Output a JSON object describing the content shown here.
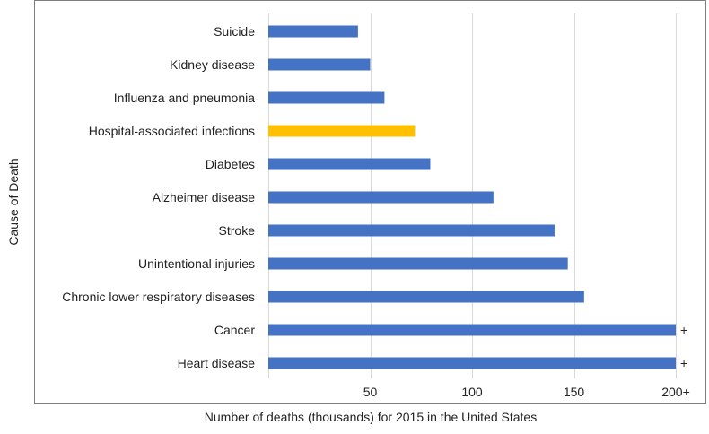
{
  "chart_data": {
    "type": "bar",
    "orientation": "horizontal",
    "title": "",
    "xlabel": "Number of deaths (thousands) for 2015 in the United States",
    "ylabel": "Cause of Death",
    "categories": [
      "Suicide",
      "Kidney disease",
      "Influenza and pneumonia",
      "Hospital-associated infections",
      "Diabetes",
      "Alzheimer disease",
      "Stroke",
      "Unintentional injuries",
      "Chronic lower respiratory diseases",
      "Cancer",
      "Heart disease"
    ],
    "values": [
      44,
      50,
      57,
      72,
      79.5,
      110.5,
      140.5,
      147,
      155,
      200,
      200
    ],
    "highlight_category": "Hospital-associated infections",
    "colors": {
      "default": "#4472C4",
      "highlight": "#FFC000"
    },
    "data_labels": [
      "",
      "",
      "",
      "",
      "",
      "",
      "",
      "",
      "",
      "+",
      "+"
    ],
    "xticks": [
      50,
      100,
      150,
      200
    ],
    "xtick_labels": [
      "50",
      "100",
      "150",
      "200+"
    ],
    "xlim": [
      0,
      200
    ],
    "grid": "vertical",
    "legend": "none"
  }
}
